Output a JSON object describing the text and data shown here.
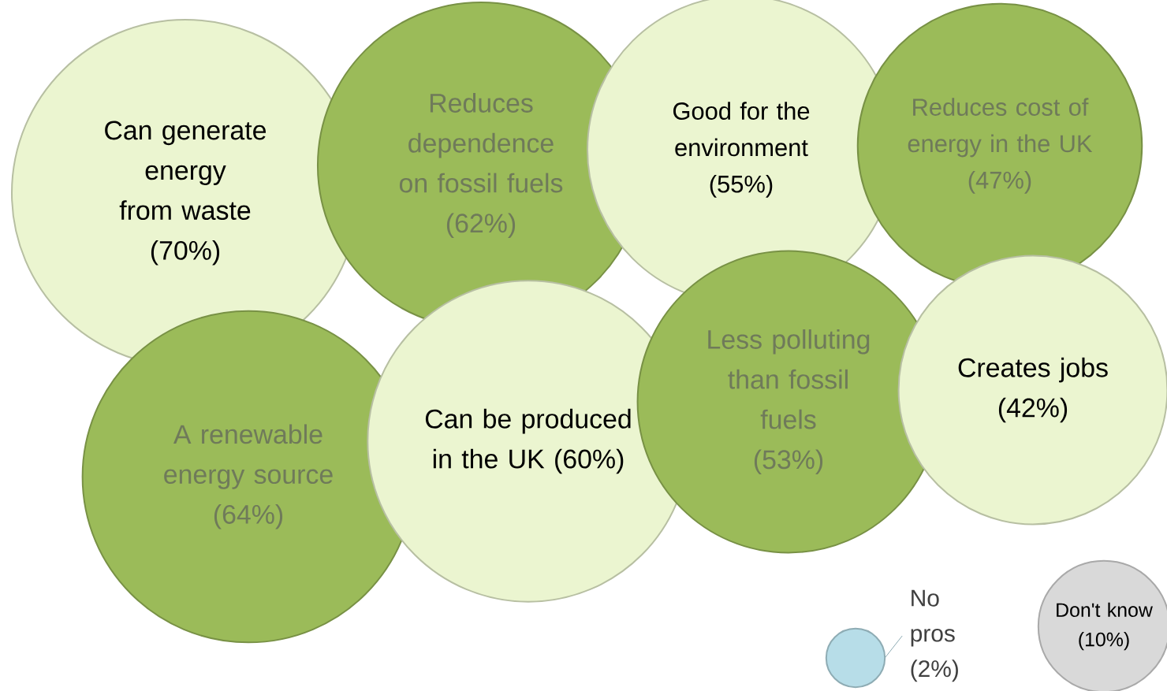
{
  "chart_data": {
    "type": "other",
    "categories": [
      "Can generate energy from waste",
      "Reduces dependence on fossil fuels",
      "Good for the environment",
      "Reduces cost of energy in the UK",
      "A renewable energy source",
      "Can be produced in the UK",
      "Less polluting than fossil fuels",
      "Creates jobs",
      "No pros",
      "Don't know"
    ],
    "values": [
      70,
      62,
      55,
      47,
      64,
      60,
      53,
      42,
      2,
      10
    ],
    "value_labels": [
      "(70%)",
      "(62%)",
      "(55%)",
      "(47%)",
      "(64%)",
      "(60%)",
      "(53%)",
      "(42%)",
      "(2%)",
      "(10%)"
    ],
    "colors": [
      "#ebf5d0",
      "#9bbb59",
      "#ebf5d0",
      "#9bbb59",
      "#9bbb59",
      "#ebf5d0",
      "#9bbb59",
      "#ebf5d0",
      "#b7dde8",
      "#d9d9d9"
    ]
  }
}
